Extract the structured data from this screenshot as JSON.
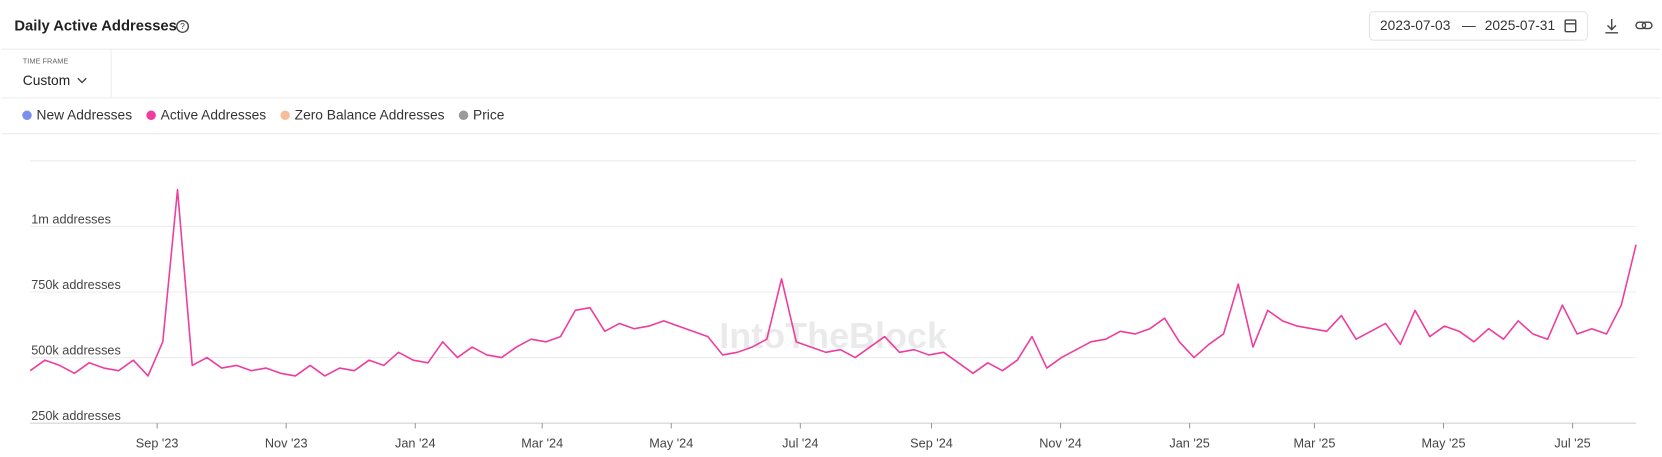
{
  "time_frame": {
    "label": "TIME FRAME",
    "value": "Custom"
  },
  "date_separator": "—",
  "watermark": "IntoTheBlock",
  "inactive_series": [
    {
      "name": "New Addresses",
      "color": "#7b8ff0"
    },
    {
      "name": "Zero Balance Addresses",
      "color": "#f7be9a"
    },
    {
      "name": "Price",
      "color": "#9a9a9a"
    }
  ],
  "chart_data": {
    "type": "line",
    "title": "Daily Active Addresses",
    "xlim": [
      "2023-07-03",
      "2025-07-31"
    ],
    "xticks": [
      {
        "value": "2023-09-01",
        "label": "Sep '23"
      },
      {
        "value": "2023-11-01",
        "label": "Nov '23"
      },
      {
        "value": "2024-01-01",
        "label": "Jan '24"
      },
      {
        "value": "2024-03-01",
        "label": "Mar '24"
      },
      {
        "value": "2024-05-01",
        "label": "May '24"
      },
      {
        "value": "2024-07-01",
        "label": "Jul '24"
      },
      {
        "value": "2024-09-01",
        "label": "Sep '24"
      },
      {
        "value": "2024-11-01",
        "label": "Nov '24"
      },
      {
        "value": "2025-01-01",
        "label": "Jan '25"
      },
      {
        "value": "2025-03-01",
        "label": "Mar '25"
      },
      {
        "value": "2025-05-01",
        "label": "May '25"
      },
      {
        "value": "2025-07-01",
        "label": "Jul '25"
      }
    ],
    "ylim": [
      250000,
      1250000
    ],
    "yticks": [
      {
        "value": 250000,
        "label": "250k addresses"
      },
      {
        "value": 500000,
        "label": "500k addresses"
      },
      {
        "value": 750000,
        "label": "750k addresses"
      },
      {
        "value": 1000000,
        "label": "1m addresses"
      }
    ],
    "grid": true,
    "series": [
      {
        "name": "Active Addresses",
        "color": "#ee3d9f",
        "values": [
          450000,
          490000,
          470000,
          440000,
          480000,
          460000,
          450000,
          490000,
          430000,
          560000,
          1140000,
          470000,
          500000,
          460000,
          470000,
          450000,
          460000,
          440000,
          430000,
          470000,
          430000,
          460000,
          450000,
          490000,
          470000,
          520000,
          490000,
          480000,
          560000,
          500000,
          540000,
          510000,
          500000,
          540000,
          570000,
          560000,
          580000,
          680000,
          690000,
          600000,
          630000,
          610000,
          620000,
          640000,
          620000,
          600000,
          580000,
          510000,
          520000,
          540000,
          570000,
          800000,
          560000,
          540000,
          520000,
          530000,
          500000,
          540000,
          580000,
          520000,
          530000,
          510000,
          520000,
          480000,
          440000,
          480000,
          450000,
          490000,
          580000,
          460000,
          500000,
          530000,
          560000,
          570000,
          600000,
          590000,
          610000,
          650000,
          560000,
          500000,
          550000,
          590000,
          780000,
          540000,
          680000,
          640000,
          620000,
          610000,
          600000,
          660000,
          570000,
          600000,
          630000,
          550000,
          680000,
          580000,
          620000,
          600000,
          560000,
          610000,
          570000,
          640000,
          590000,
          570000,
          700000,
          590000,
          610000,
          590000,
          700000,
          930000
        ]
      }
    ]
  }
}
